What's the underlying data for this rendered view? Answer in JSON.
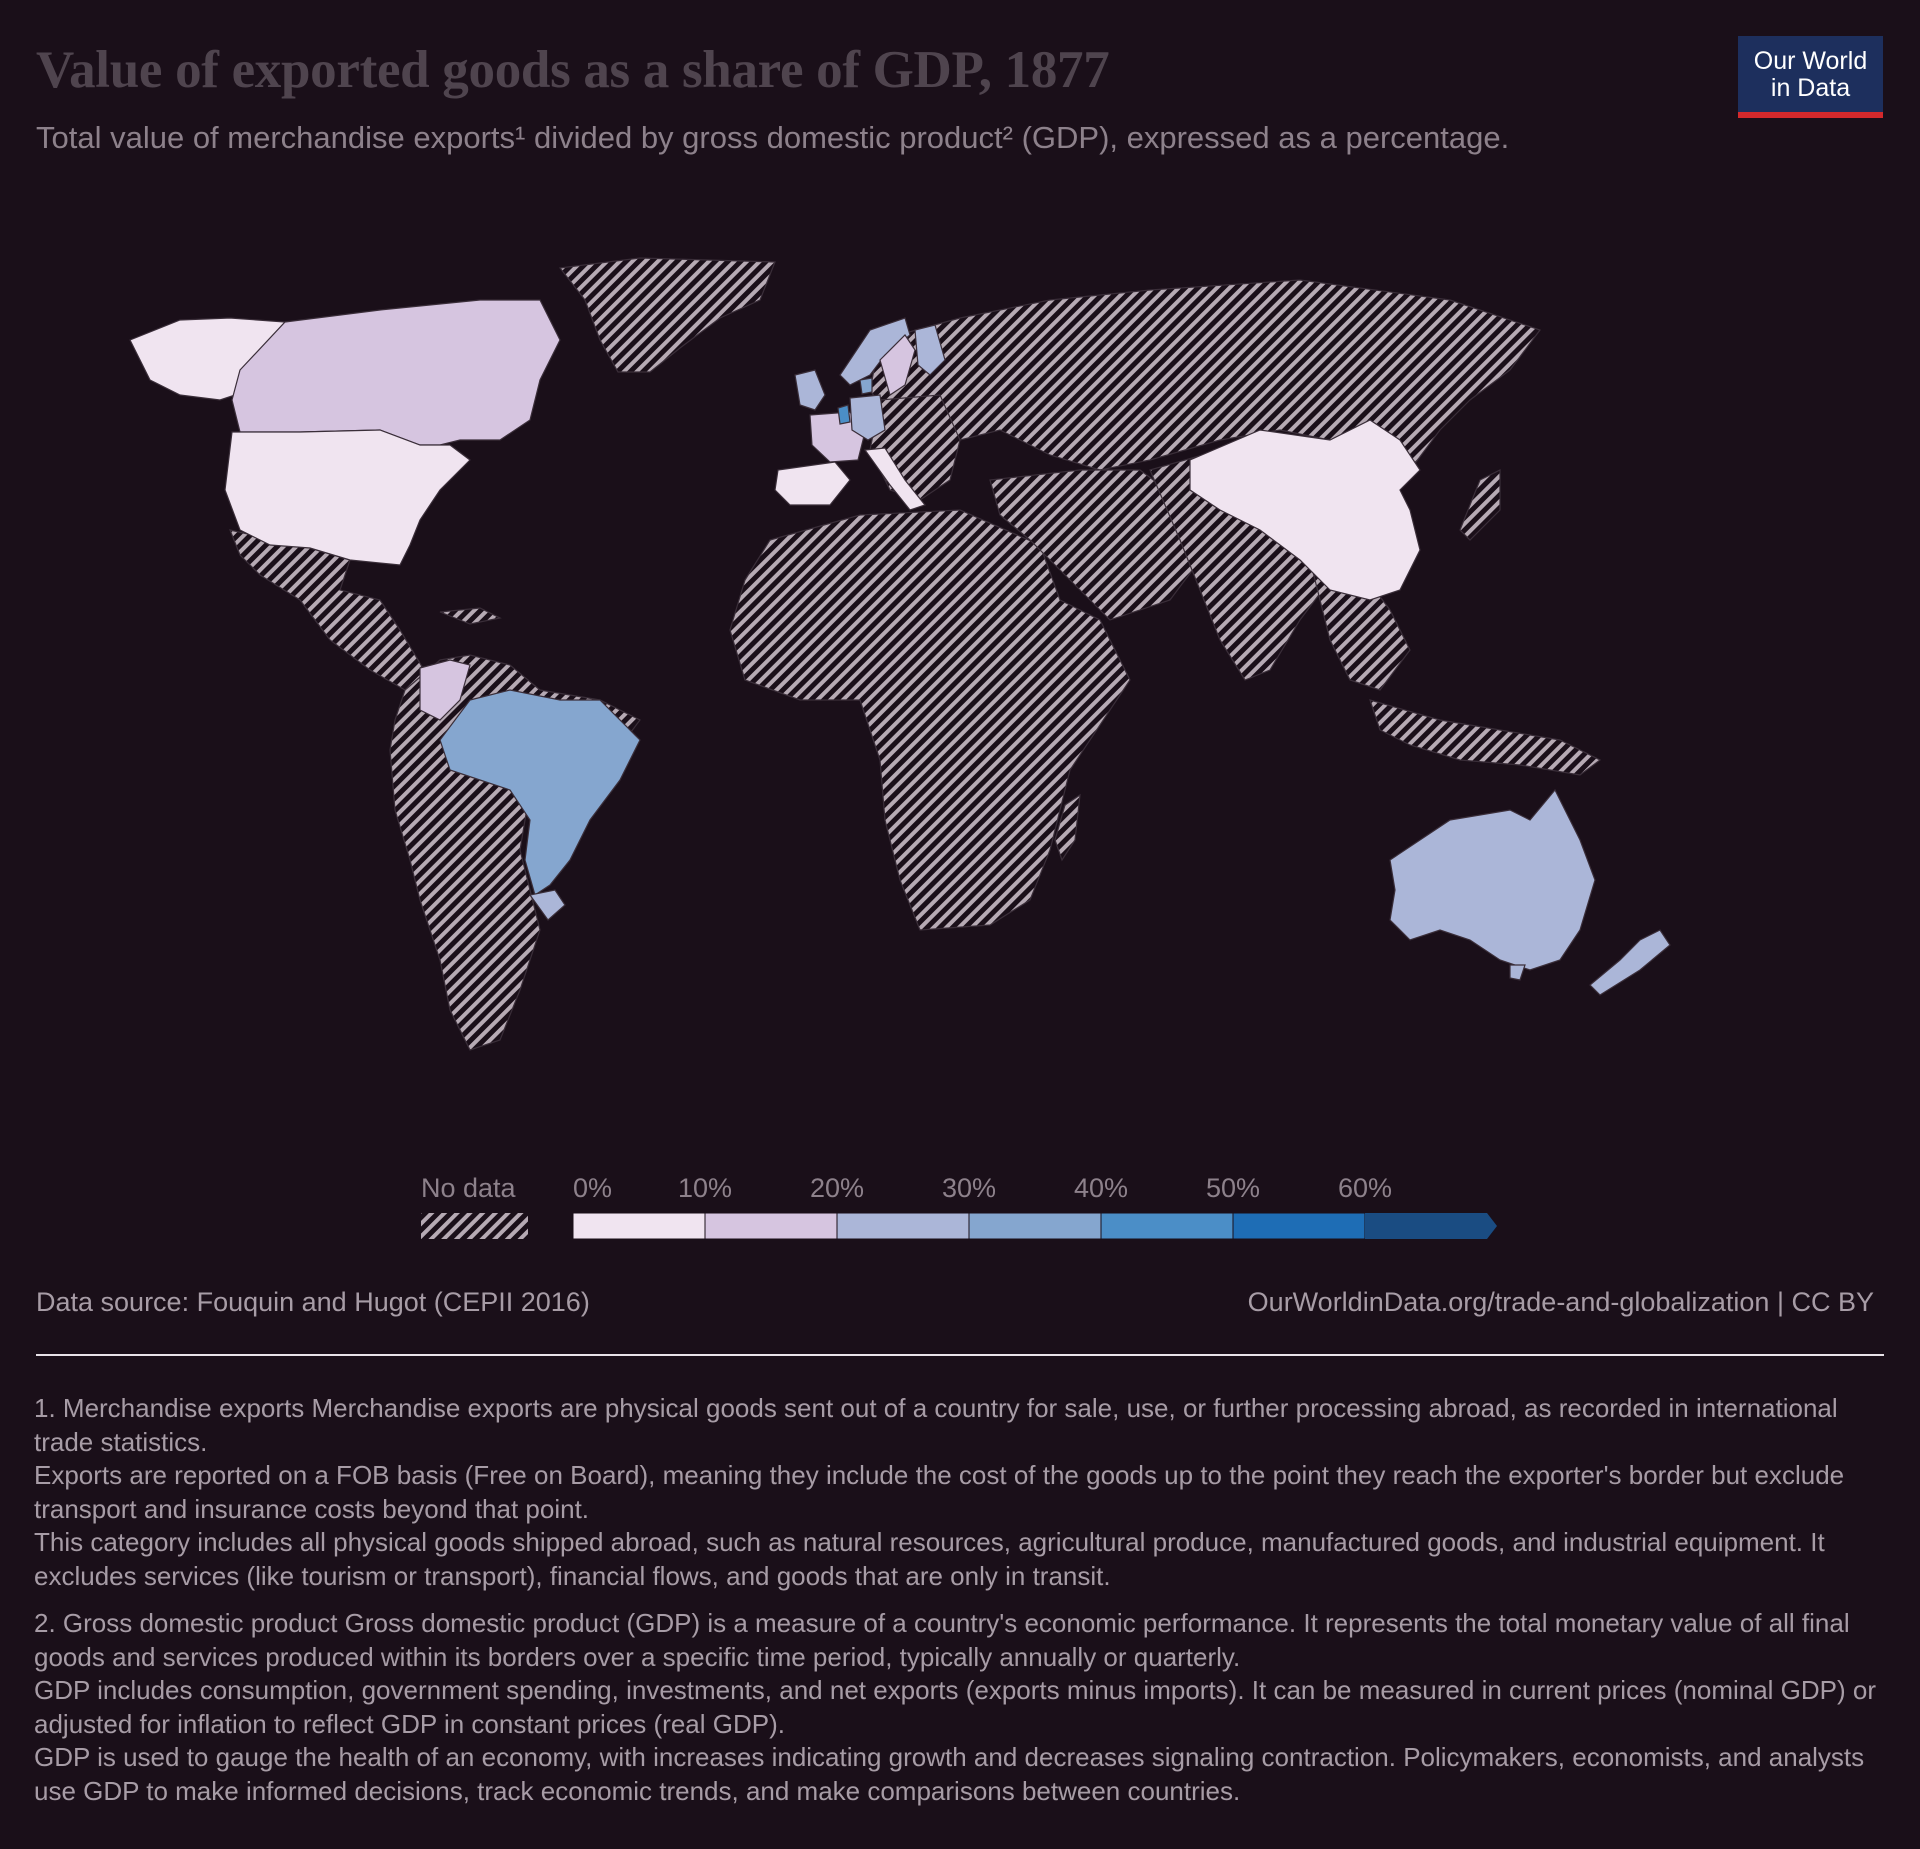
{
  "header": {
    "title": "Value of exported goods as a share of GDP, 1877",
    "subtitle": "Total value of merchandise exports¹ divided by gross domestic product² (GDP), expressed as a percentage."
  },
  "logo": {
    "line1": "Our World",
    "line2": "in Data",
    "bg_color": "#1d2f5d",
    "accent_color": "#d3292c"
  },
  "legend": {
    "no_data_label": "No data",
    "ticks": [
      "0%",
      "10%",
      "20%",
      "30%",
      "40%",
      "50%",
      "60%"
    ],
    "colors": [
      "#f0e4f0",
      "#d6c5e0",
      "#abb6d8",
      "#85a6cf",
      "#4b8ec7",
      "#1e6db5",
      "#1a4c82"
    ]
  },
  "map": {
    "no_data_pattern": "diagonal-hatch",
    "country_values": [
      {
        "country": "United States",
        "bin": "0–10%"
      },
      {
        "country": "China",
        "bin": "0–10%"
      },
      {
        "country": "Spain",
        "bin": "0–10%"
      },
      {
        "country": "Italy",
        "bin": "0–10%"
      },
      {
        "country": "Canada",
        "bin": "10–20%"
      },
      {
        "country": "Colombia",
        "bin": "10–20%"
      },
      {
        "country": "Sweden",
        "bin": "10–20%"
      },
      {
        "country": "France",
        "bin": "10–20%"
      },
      {
        "country": "Uruguay",
        "bin": "20–30%"
      },
      {
        "country": "Australia",
        "bin": "20–30%"
      },
      {
        "country": "New Zealand",
        "bin": "20–30%"
      },
      {
        "country": "Norway",
        "bin": "20–30%"
      },
      {
        "country": "Finland",
        "bin": "20–30%"
      },
      {
        "country": "United Kingdom",
        "bin": "20–30%"
      },
      {
        "country": "Germany",
        "bin": "20–30%"
      },
      {
        "country": "Brazil",
        "bin": "30–40%"
      },
      {
        "country": "Denmark",
        "bin": "30–40%"
      },
      {
        "country": "Netherlands",
        "bin": "40–50%"
      }
    ]
  },
  "footer": {
    "source": "Data source: Fouquin and Hugot (CEPII 2016)",
    "url": "OurWorldinData.org/trade-and-globalization | CC BY"
  },
  "notes": {
    "n1": [
      "1. Merchandise exports Merchandise exports are physical goods sent out of a country for sale, use, or further processing abroad, as recorded in international trade statistics.",
      "Exports are reported on a FOB basis (Free on Board), meaning they include the cost of the goods up to the point they reach the exporter's border but exclude transport and insurance costs beyond that point.",
      "This category includes all physical goods shipped abroad, such as natural resources, agricultural produce, manufactured goods, and industrial equipment. It excludes services (like tourism or transport), financial flows, and goods that are only in transit."
    ],
    "n2": [
      "2. Gross domestic product Gross domestic product (GDP) is a measure of a country's economic performance. It represents the total monetary value of all final goods and services produced within its borders over a specific time period, typically annually or quarterly.",
      "GDP includes consumption, government spending, investments, and net exports (exports minus imports). It can be measured in current prices (nominal GDP) or adjusted for inflation to reflect GDP in constant prices (real GDP).",
      "GDP is used to gauge the health of an economy, with increases indicating growth and decreases signaling contraction. Policymakers, economists, and analysts use GDP to make informed decisions, track economic trends, and make comparisons between countries."
    ]
  }
}
